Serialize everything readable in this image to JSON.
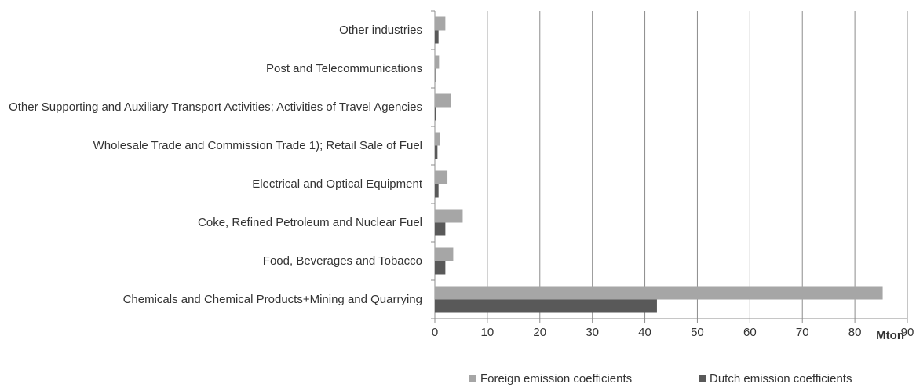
{
  "chart_data": {
    "type": "bar",
    "orientation": "horizontal",
    "categories": [
      "Other industries",
      "Post and Telecommunications",
      "Other Supporting and Auxiliary Transport Activities; Activities of Travel Agencies",
      "Wholesale Trade and Commission Trade 1); Retail Sale of Fuel",
      "Electrical and Optical Equipment",
      "Coke, Refined Petroleum and Nuclear Fuel",
      "Food, Beverages and Tobacco",
      "Chemicals and Chemical Products+Mining and Quarrying"
    ],
    "series": [
      {
        "name": "Foreign emission coefficients",
        "color": "#a6a6a6",
        "values": [
          2.0,
          0.8,
          3.1,
          0.9,
          2.4,
          5.3,
          3.5,
          85.3
        ]
      },
      {
        "name": "Dutch emission coefficients",
        "color": "#595959",
        "values": [
          0.7,
          0.1,
          0.2,
          0.5,
          0.7,
          2.0,
          2.0,
          42.3
        ]
      }
    ],
    "xlabel": "Mton",
    "xlim": [
      0,
      90
    ],
    "xticks": [
      0,
      10,
      20,
      30,
      40,
      50,
      60,
      70,
      80,
      90
    ],
    "grid": true,
    "legend": "bottom"
  }
}
